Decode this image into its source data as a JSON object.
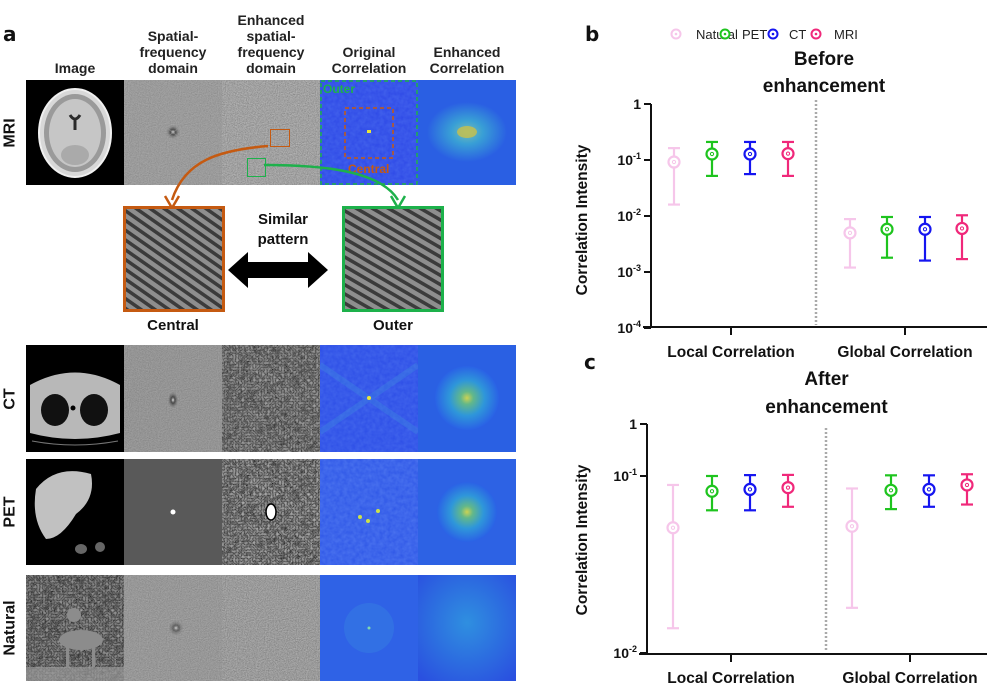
{
  "panel_a": {
    "letter": "a",
    "column_headers": [
      "Image",
      "Spatial-\nfrequency\ndomain",
      "Enhanced\nspatial-\nfrequency\ndomain",
      "Original\nCorrelation",
      "Enhanced\nCorrelation"
    ],
    "rows": [
      {
        "label": "MRI"
      },
      {
        "label": "CT"
      },
      {
        "label": "PET"
      },
      {
        "label": "Natural"
      }
    ],
    "overlay_labels": {
      "outer": "Outer",
      "central": "Central"
    },
    "zoom_insets": {
      "central_label": "Central",
      "outer_label": "Outer",
      "comparison_text": "Similar\npattern"
    },
    "colors": {
      "central": "#c55a11",
      "outer": "#1db14b"
    }
  },
  "chart_data": [
    {
      "panel": "b",
      "type": "scatter",
      "title": "Before\nenhancement",
      "xlabel": "",
      "ylabel": "Correlation Intensity",
      "yscale": "log",
      "ylim": [
        0.0001,
        1
      ],
      "ytick_labels": [
        {
          "value": 1,
          "base": "1",
          "exp": ""
        },
        {
          "value": 0.1,
          "base": "10",
          "exp": "-1"
        },
        {
          "value": 0.01,
          "base": "10",
          "exp": "-2"
        },
        {
          "value": 0.001,
          "base": "10",
          "exp": "-3"
        },
        {
          "value": 0.0001,
          "base": "10",
          "exp": "-4"
        }
      ],
      "categories": [
        "Local Correlation",
        "Global Correlation"
      ],
      "series": [
        {
          "name": "Natural",
          "color": "#f6c6ea",
          "mean": [
            0.092,
            0.005
          ],
          "upper": [
            0.163,
            0.0088
          ],
          "lower": [
            0.016,
            0.0012
          ]
        },
        {
          "name": "PET",
          "color": "#1ec41e",
          "mean": [
            0.128,
            0.0058
          ],
          "upper": [
            0.21,
            0.0096
          ],
          "lower": [
            0.052,
            0.0018
          ]
        },
        {
          "name": "CT",
          "color": "#1515f0",
          "mean": [
            0.128,
            0.0058
          ],
          "upper": [
            0.21,
            0.0096
          ],
          "lower": [
            0.056,
            0.0016
          ]
        },
        {
          "name": "MRI",
          "color": "#f0287a",
          "mean": [
            0.13,
            0.006
          ],
          "upper": [
            0.21,
            0.0103
          ],
          "lower": [
            0.052,
            0.0017
          ]
        }
      ],
      "legend": "top"
    },
    {
      "panel": "c",
      "type": "scatter",
      "title": "After\nenhancement",
      "xlabel": "",
      "ylabel": "Correlation Intensity",
      "yscale": "log (segmented)",
      "ylim": [
        0.01,
        1
      ],
      "ytick_labels": [
        {
          "value": 1,
          "base": "1",
          "exp": ""
        },
        {
          "value": 0.1,
          "base": "10",
          "exp": "-1"
        },
        {
          "value": 0.01,
          "base": "10",
          "exp": "-2"
        }
      ],
      "categories": [
        "Local Correlation",
        "Global Correlation"
      ],
      "series": [
        {
          "name": "Natural",
          "color": "#f6c6ea",
          "mean": [
            0.051,
            0.052
          ],
          "upper": [
            0.089,
            0.085
          ],
          "lower": [
            0.0138,
            0.018
          ]
        },
        {
          "name": "PET",
          "color": "#1ec41e",
          "mean": [
            0.082,
            0.083
          ],
          "upper": [
            0.1,
            0.103
          ],
          "lower": [
            0.064,
            0.065
          ]
        },
        {
          "name": "CT",
          "color": "#1515f0",
          "mean": [
            0.084,
            0.084
          ],
          "upper": [
            0.104,
            0.103
          ],
          "lower": [
            0.064,
            0.067
          ]
        },
        {
          "name": "MRI",
          "color": "#f0287a",
          "mean": [
            0.086,
            0.089
          ],
          "upper": [
            0.105,
            0.108
          ],
          "lower": [
            0.067,
            0.069
          ]
        }
      ],
      "legend": "none"
    }
  ]
}
